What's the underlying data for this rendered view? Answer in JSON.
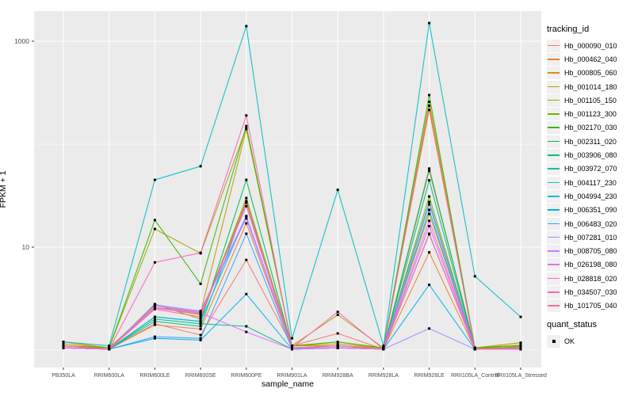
{
  "figure": {
    "background": "#ffffff",
    "panel_background": "#ebebeb",
    "grid_color": "#ffffff",
    "tick_mark_color": "#333333",
    "tick_label_color": "#4d4d4d",
    "text_color": "#000000",
    "legend_key_background": "#f0f0f0"
  },
  "axes": {
    "x_title": "sample_name",
    "y_title": "FPKM + 1"
  },
  "legend": {
    "color_title": "tracking_id",
    "shape_title": "quant_status",
    "shape_label": "OK"
  },
  "chart_data": {
    "type": "line",
    "title": "",
    "xlabel": "sample_name",
    "ylabel": "FPKM + 1",
    "y_scale": "log10",
    "ylim": [
      0.9,
      2100
    ],
    "grid": true,
    "legend_position": "right",
    "point_marker": {
      "shape": "square",
      "color": "#000000",
      "legend_label": "OK"
    },
    "y_major_ticks": [
      {
        "label": "1000",
        "value": 1000
      },
      {
        "label": "10",
        "value": 10
      }
    ],
    "y_minor_gridlines": [
      100,
      1
    ],
    "categories": [
      "PB350LA",
      "RRIM600LA",
      "RRIM600LE",
      "RRIM600SE",
      "RRIM600PE",
      "RRIM901LA",
      "RRIM928BA",
      "RRIM928LA",
      "RRIM928LE",
      "RRII105LA_Control",
      "RRII105LA_Stressed"
    ],
    "series": [
      {
        "name": "Hb_000090_010",
        "color": "#F8766D",
        "values": [
          1.1,
          1.02,
          1.8,
          1.4,
          7.5,
          1.1,
          1.45,
          1.02,
          55,
          1.05,
          1.02
        ]
      },
      {
        "name": "Hb_000462_040",
        "color": "#EA8331",
        "values": [
          1.1,
          1.02,
          1.76,
          1.6,
          17,
          1.05,
          1.1,
          1.02,
          8.9,
          1.02,
          1.02
        ]
      },
      {
        "name": "Hb_000805_060",
        "color": "#D89000",
        "values": [
          1.15,
          1.05,
          2.6,
          2.2,
          28,
          1.1,
          1.1,
          1.05,
          215,
          1.05,
          1.05
        ]
      },
      {
        "name": "Hb_001014_180",
        "color": "#C09B00",
        "values": [
          1.2,
          1.05,
          2.7,
          2.3,
          140,
          1.1,
          1.15,
          1.05,
          21,
          1.05,
          1.12
        ]
      },
      {
        "name": "Hb_001105_150",
        "color": "#A3A500",
        "values": [
          1.1,
          1.05,
          15.0,
          8.7,
          145,
          1.1,
          2.2,
          1.05,
          258,
          1.05,
          1.18
        ]
      },
      {
        "name": "Hb_001123_300",
        "color": "#7CAE00",
        "values": [
          1.1,
          1.02,
          2.8,
          2.0,
          30,
          1.05,
          1.1,
          1.02,
          31,
          1.02,
          1.08
        ]
      },
      {
        "name": "Hb_002170_030",
        "color": "#39B600",
        "values": [
          1.1,
          1.05,
          18.3,
          4.4,
          150,
          1.1,
          1.2,
          1.05,
          300,
          1.05,
          1.1
        ]
      },
      {
        "name": "Hb_002311_020",
        "color": "#00BB4E",
        "values": [
          1.05,
          1.02,
          2.1,
          1.9,
          45,
          1.05,
          1.1,
          1.02,
          58,
          1.02,
          1.05
        ]
      },
      {
        "name": "Hb_003906_080",
        "color": "#00BF7D",
        "values": [
          1.05,
          1.02,
          2.0,
          1.8,
          1.7,
          1.02,
          1.05,
          1.02,
          44.5,
          1.02,
          1.05
        ]
      },
      {
        "name": "Hb_003972_070",
        "color": "#00C1A3",
        "values": [
          1.05,
          1.02,
          1.9,
          1.7,
          27,
          1.02,
          1.05,
          1.02,
          27.5,
          1.02,
          1.05
        ]
      },
      {
        "name": "Hb_004117_230",
        "color": "#00BFC4",
        "values": [
          1.2,
          1.1,
          45,
          61,
          1400,
          1.3,
          36,
          1.1,
          1500,
          5.2,
          2.1
        ]
      },
      {
        "name": "Hb_004994_230",
        "color": "#00BAE0",
        "values": [
          1.05,
          1.02,
          2.1,
          1.9,
          20,
          1.05,
          1.05,
          1.02,
          23,
          1.02,
          1.02
        ]
      },
      {
        "name": "Hb_006351_090",
        "color": "#00B0F6",
        "values": [
          1.05,
          1.02,
          1.3,
          1.25,
          3.5,
          1.02,
          1.05,
          1.02,
          4.3,
          1.02,
          1.02
        ]
      },
      {
        "name": "Hb_006483_020",
        "color": "#35A2FF",
        "values": [
          1.05,
          1.02,
          1.35,
          1.3,
          13.5,
          1.02,
          1.05,
          1.02,
          13.5,
          1.02,
          1.02
        ]
      },
      {
        "name": "Hb_007281_010",
        "color": "#9590FF",
        "values": [
          1.05,
          1.02,
          2.75,
          2.4,
          20,
          1.05,
          1.05,
          1.02,
          1.62,
          1.02,
          1.02
        ]
      },
      {
        "name": "Hb_008705_080",
        "color": "#C77CFF",
        "values": [
          1.05,
          1.02,
          2.7,
          2.35,
          19,
          1.05,
          1.05,
          1.02,
          26,
          1.02,
          1.02
        ]
      },
      {
        "name": "Hb_026198_080",
        "color": "#E76BF3",
        "values": [
          1.05,
          1.02,
          2.6,
          2.3,
          1.5,
          1.02,
          1.05,
          1.02,
          18,
          1.02,
          1.02
        ]
      },
      {
        "name": "Hb_028818_020",
        "color": "#FA62DB",
        "values": [
          1.05,
          1.02,
          2.55,
          2.25,
          25,
          1.05,
          1.1,
          1.02,
          16,
          1.02,
          1.02
        ]
      },
      {
        "name": "Hb_034507_030",
        "color": "#FF62BC",
        "values": [
          1.1,
          1.02,
          7.1,
          8.8,
          190,
          1.05,
          2.35,
          1.02,
          236,
          1.02,
          1.05
        ]
      },
      {
        "name": "Hb_101705_040",
        "color": "#FF6A98",
        "values": [
          1.1,
          1.02,
          2.5,
          2.1,
          27,
          1.05,
          1.1,
          1.02,
          13.3,
          1.02,
          1.05
        ]
      }
    ]
  }
}
